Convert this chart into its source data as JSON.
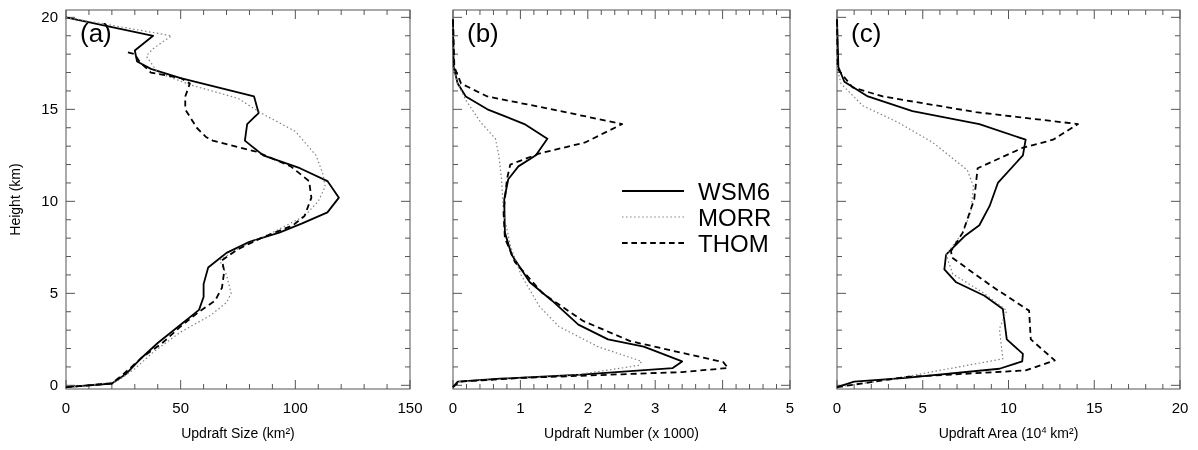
{
  "chart_data": [
    {
      "type": "line",
      "annotations": [
        "(a)"
      ],
      "xlabel": "Updraft Size (km²)",
      "ylabel": "Height (km)",
      "xlim": [
        0,
        150
      ],
      "ylim": [
        -0.2,
        20.4
      ],
      "xticks": [
        0,
        {
          "value": 10,
          "label": null
        },
        {
          "value": 20,
          "label": null
        },
        {
          "value": 30,
          "label": null
        },
        {
          "value": 40,
          "label": null
        },
        50,
        {
          "value": 60,
          "label": null
        },
        {
          "value": 70,
          "label": null
        },
        {
          "value": 80,
          "label": null
        },
        {
          "value": 90,
          "label": null
        },
        100,
        {
          "value": 110,
          "label": null
        },
        {
          "value": 120,
          "label": null
        },
        {
          "value": 130,
          "label": null
        },
        {
          "value": 140,
          "label": null
        },
        150
      ],
      "yticks": [
        0,
        {
          "value": 1,
          "label": null
        },
        {
          "value": 2,
          "label": null
        },
        {
          "value": 3,
          "label": null
        },
        {
          "value": 4,
          "label": null
        },
        5,
        {
          "value": 6,
          "label": null
        },
        {
          "value": 7,
          "label": null
        },
        {
          "value": 8,
          "label": null
        },
        {
          "value": 9,
          "label": null
        },
        10,
        {
          "value": 11,
          "label": null
        },
        {
          "value": 12,
          "label": null
        },
        {
          "value": 13,
          "label": null
        },
        {
          "value": 14,
          "label": null
        },
        15,
        {
          "value": 16,
          "label": null
        },
        {
          "value": 17,
          "label": null
        },
        {
          "value": 18,
          "label": null
        },
        {
          "value": 19,
          "label": null
        },
        20
      ],
      "series": [
        {
          "color": "#000000",
          "line_style": "solid",
          "x": [
            0,
            20,
            26,
            33,
            40,
            49,
            58,
            60,
            60,
            62,
            70,
            80,
            93,
            103,
            114,
            119,
            114,
            102,
            86,
            78,
            79,
            84,
            82,
            50,
            37,
            31,
            30,
            38,
            0
          ],
          "values": [
            -0.1,
            0.1,
            0.6,
            1.5,
            2.3,
            3.2,
            4.1,
            4.8,
            5.5,
            6.4,
            7.2,
            7.8,
            8.3,
            8.8,
            9.4,
            10.2,
            11.1,
            11.8,
            12.5,
            13.3,
            14.2,
            14.8,
            15.7,
            16.7,
            17.2,
            17.6,
            18.2,
            19.0,
            20.0
          ]
        },
        {
          "color": "#808080",
          "line_style": "dotted",
          "x": [
            0,
            10,
            22,
            30,
            38,
            50,
            63,
            70,
            72,
            70,
            67,
            76,
            90,
            104,
            110,
            113,
            112,
            109,
            100,
            85,
            75,
            55,
            40,
            35,
            38,
            46,
            0
          ],
          "values": [
            -0.1,
            0,
            0.2,
            0.9,
            1.8,
            2.9,
            3.8,
            4.5,
            5.0,
            6.0,
            6.8,
            7.5,
            8.3,
            9.2,
            10.0,
            10.8,
            11.5,
            12.5,
            13.8,
            14.8,
            15.6,
            16.3,
            17.0,
            17.9,
            18.3,
            19.0,
            20.0
          ]
        },
        {
          "color": "#000000",
          "line_style": "dashed",
          "x": [
            0,
            20,
            25,
            33,
            42,
            50,
            58,
            65,
            68,
            69,
            68,
            75,
            85,
            99,
            104,
            107,
            106,
            98,
            83,
            64,
            61,
            57,
            52,
            52,
            54,
            50,
            37,
            32,
            30,
            27
          ],
          "values": [
            -0.1,
            0.1,
            0.6,
            1.5,
            2.3,
            3.2,
            4.0,
            4.6,
            5.3,
            6.2,
            6.8,
            7.4,
            8.0,
            8.7,
            9.2,
            10.2,
            11.1,
            11.9,
            12.7,
            13.3,
            13.5,
            14.0,
            15.0,
            15.7,
            16.4,
            16.7,
            17.0,
            17.6,
            18.0,
            18.1
          ]
        }
      ]
    },
    {
      "type": "line",
      "annotations": [
        "(b)"
      ],
      "xlabel": "Updraft Number (x 1000)",
      "xlim": [
        0,
        5
      ],
      "ylim": [
        -0.2,
        20.4
      ],
      "tick_labels": "x",
      "legend": "right",
      "xticks": [
        0,
        {
          "value": 0.2,
          "label": null
        },
        {
          "value": 0.4,
          "label": null
        },
        {
          "value": 0.6,
          "label": null
        },
        {
          "value": 0.8,
          "label": null
        },
        1,
        {
          "value": 1.2,
          "label": null
        },
        {
          "value": 1.4,
          "label": null
        },
        {
          "value": 1.6,
          "label": null
        },
        {
          "value": 1.8,
          "label": null
        },
        2,
        {
          "value": 2.2,
          "label": null
        },
        {
          "value": 2.4,
          "label": null
        },
        {
          "value": 2.6,
          "label": null
        },
        {
          "value": 2.8,
          "label": null
        },
        3,
        {
          "value": 3.2,
          "label": null
        },
        {
          "value": 3.4,
          "label": null
        },
        {
          "value": 3.6,
          "label": null
        },
        {
          "value": 3.8,
          "label": null
        },
        4,
        {
          "value": 4.2,
          "label": null
        },
        {
          "value": 4.4,
          "label": null
        },
        {
          "value": 4.6,
          "label": null
        },
        {
          "value": 4.8,
          "label": null
        },
        5
      ],
      "yticks": [
        0,
        {
          "value": 1,
          "label": null
        },
        {
          "value": 2,
          "label": null
        },
        {
          "value": 3,
          "label": null
        },
        {
          "value": 4,
          "label": null
        },
        5,
        {
          "value": 6,
          "label": null
        },
        {
          "value": 7,
          "label": null
        },
        {
          "value": 8,
          "label": null
        },
        {
          "value": 9,
          "label": null
        },
        10,
        {
          "value": 11,
          "label": null
        },
        {
          "value": 12,
          "label": null
        },
        {
          "value": 13,
          "label": null
        },
        {
          "value": 14,
          "label": null
        },
        15,
        {
          "value": 16,
          "label": null
        },
        {
          "value": 17,
          "label": null
        },
        {
          "value": 18,
          "label": null
        },
        {
          "value": 19,
          "label": null
        },
        20
      ],
      "series": [
        {
          "name": "WSM6",
          "color": "#000000",
          "line_style": "solid",
          "x": [
            0,
            0.07,
            0.7,
            1.9,
            3.26,
            3.4,
            2.83,
            2.3,
            1.86,
            1.47,
            1.14,
            0.87,
            0.77,
            0.76,
            0.82,
            0.97,
            1.23,
            1.4,
            1.06,
            0.51,
            0.19,
            0.07,
            0.01,
            0
          ],
          "values": [
            -0.1,
            0.2,
            0.36,
            0.58,
            0.94,
            1.3,
            2.1,
            2.5,
            3.3,
            4.6,
            5.6,
            7.1,
            8.3,
            10.1,
            11.2,
            11.9,
            12.5,
            13.4,
            14.2,
            15.0,
            15.7,
            16.4,
            17.3,
            19.9
          ]
        },
        {
          "name": "MORR",
          "color": "#808080",
          "line_style": "dotted",
          "x": [
            0,
            0.1,
            0.8,
            1.8,
            2.75,
            2.8,
            2.15,
            1.57,
            1.28,
            1.01,
            0.85,
            0.75,
            0.72,
            0.68,
            0.63,
            0.41,
            0.19,
            0.07,
            0,
            0
          ],
          "values": [
            -0.1,
            0.2,
            0.35,
            0.55,
            1.08,
            1.3,
            2.1,
            3.2,
            4.3,
            6.0,
            7.6,
            9.4,
            11.2,
            12.5,
            13.4,
            14.3,
            15.5,
            16.4,
            17.3,
            19.9
          ]
        },
        {
          "name": "THOM",
          "color": "#000000",
          "line_style": "dashed",
          "x": [
            0,
            0.1,
            1.0,
            2.5,
            3.4,
            4.08,
            4.01,
            2.63,
            1.93,
            1.33,
            0.92,
            0.77,
            0.75,
            0.8,
            0.85,
            1.28,
            1.96,
            2.51,
            1.47,
            0.51,
            0.12,
            0.02,
            0
          ],
          "values": [
            -0.1,
            0.2,
            0.4,
            0.6,
            0.72,
            0.94,
            1.26,
            2.4,
            3.5,
            5.0,
            6.7,
            8.0,
            9.4,
            11.2,
            12.0,
            12.6,
            13.2,
            14.2,
            15.0,
            15.7,
            16.4,
            17.3,
            19.9
          ]
        }
      ]
    },
    {
      "type": "line",
      "annotations": [
        "(c)"
      ],
      "xlabel": "Updraft Area (10$^{4}$ km²)",
      "xlim": [
        0,
        20
      ],
      "ylim": [
        -0.2,
        20.4
      ],
      "tick_labels": "x",
      "xticks": [
        0,
        {
          "value": 1,
          "label": null
        },
        {
          "value": 2,
          "label": null
        },
        {
          "value": 3,
          "label": null
        },
        {
          "value": 4,
          "label": null
        },
        5,
        {
          "value": 6,
          "label": null
        },
        {
          "value": 7,
          "label": null
        },
        {
          "value": 8,
          "label": null
        },
        {
          "value": 9,
          "label": null
        },
        10,
        {
          "value": 11,
          "label": null
        },
        {
          "value": 12,
          "label": null
        },
        {
          "value": 13,
          "label": null
        },
        {
          "value": 14,
          "label": null
        },
        15,
        {
          "value": 16,
          "label": null
        },
        {
          "value": 17,
          "label": null
        },
        {
          "value": 18,
          "label": null
        },
        {
          "value": 19,
          "label": null
        },
        20
      ],
      "yticks": [
        0,
        {
          "value": 1,
          "label": null
        },
        {
          "value": 2,
          "label": null
        },
        {
          "value": 3,
          "label": null
        },
        {
          "value": 4,
          "label": null
        },
        5,
        {
          "value": 6,
          "label": null
        },
        {
          "value": 7,
          "label": null
        },
        {
          "value": 8,
          "label": null
        },
        {
          "value": 9,
          "label": null
        },
        10,
        {
          "value": 11,
          "label": null
        },
        {
          "value": 12,
          "label": null
        },
        {
          "value": 13,
          "label": null
        },
        {
          "value": 14,
          "label": null
        },
        15,
        {
          "value": 16,
          "label": null
        },
        {
          "value": 17,
          "label": null
        },
        {
          "value": 18,
          "label": null
        },
        {
          "value": 19,
          "label": null
        },
        20
      ],
      "series": [
        {
          "color": "#000000",
          "line_style": "solid",
          "x": [
            0,
            1.0,
            4.0,
            9.47,
            10.8,
            10.84,
            9.9,
            9.67,
            8.6,
            6.95,
            6.26,
            6.36,
            7.43,
            8.3,
            8.9,
            9.38,
            10.84,
            11.0,
            8.3,
            4.4,
            1.8,
            0.43,
            0.08,
            0
          ],
          "values": [
            -0.1,
            0.2,
            0.4,
            0.9,
            1.3,
            1.71,
            2.5,
            4.15,
            4.87,
            5.6,
            6.3,
            7.1,
            8.1,
            8.7,
            9.75,
            11.0,
            12.5,
            13.35,
            14.2,
            14.9,
            15.7,
            16.5,
            17.3,
            19.9
          ]
        },
        {
          "color": "#808080",
          "line_style": "dotted",
          "x": [
            0,
            3,
            9.67,
            9.47,
            9.9,
            8.5,
            6.75,
            6.36,
            7.33,
            7.8,
            7.96,
            7.6,
            5.58,
            3.54,
            1.5,
            0.23,
            0,
            0
          ],
          "values": [
            -0.1,
            0.3,
            1.44,
            3.07,
            4.06,
            5.05,
            6.05,
            7.1,
            8.3,
            9.4,
            10.8,
            11.7,
            13.2,
            14.3,
            15.2,
            16.4,
            17.3,
            19.9
          ]
        },
        {
          "color": "#000000",
          "line_style": "dashed",
          "x": [
            0,
            4,
            11.0,
            12.7,
            11.3,
            11.2,
            9.0,
            6.7,
            6.65,
            7.33,
            8.0,
            8.2,
            10.8,
            12.6,
            14.05,
            8.1,
            2.67,
            0.9,
            0.04,
            0
          ],
          "values": [
            -0.1,
            0.45,
            0.81,
            1.35,
            2.5,
            4.06,
            5.4,
            6.95,
            7.3,
            8.3,
            10.1,
            11.8,
            12.9,
            13.35,
            14.2,
            14.85,
            15.7,
            16.2,
            17.2,
            19.9
          ]
        }
      ]
    }
  ]
}
